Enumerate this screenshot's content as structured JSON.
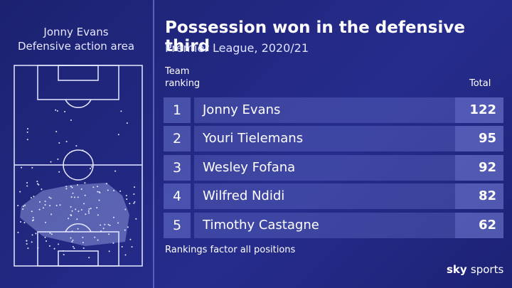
{
  "left": {
    "title_lines": [
      "Jonny Evans",
      "Defensive action area"
    ]
  },
  "title": "Possession won in the defensive third",
  "subtitle": "Premier League, 2020/21",
  "table": {
    "header": {
      "rank_lines": [
        "Team",
        "ranking"
      ],
      "total": "Total"
    },
    "rows": [
      {
        "rank": 1,
        "name": "Jonny Evans",
        "total": 122
      },
      {
        "rank": 2,
        "name": "Youri Tielemans",
        "total": 95
      },
      {
        "rank": 3,
        "name": "Wesley Fofana",
        "total": 92
      },
      {
        "rank": 4,
        "name": "Wilfred Ndidi",
        "total": 82
      },
      {
        "rank": 5,
        "name": "Timothy Castagne",
        "total": 62
      }
    ]
  },
  "footnote": "Rankings factor all positions",
  "logo": {
    "brand": "sky",
    "product": "sports"
  }
}
